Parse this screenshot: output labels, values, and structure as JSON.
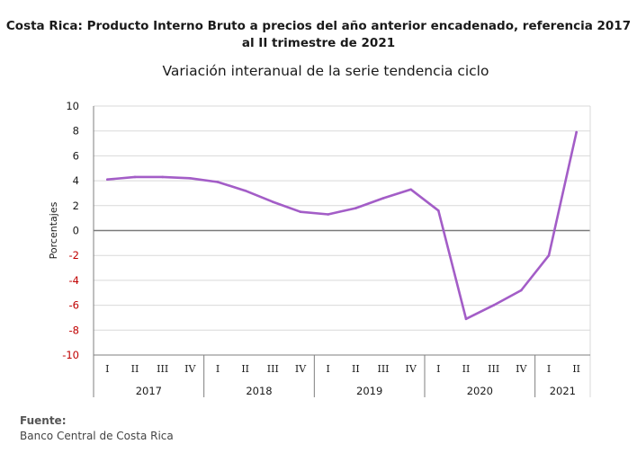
{
  "title_line1": "Costa Rica: Producto Interno Bruto a precios del año anterior encadenado, referencia 2017",
  "title_line2": "al II trimestre de 2021",
  "subtitle": "Variación interanual de la serie tendencia ciclo",
  "source_label": "Fuente:",
  "source_text": "Banco Central de Costa Rica",
  "colors": {
    "line": "#a35dc7",
    "negative_tick": "#c00000",
    "axis": "#7f7f7f",
    "grid": "#d9d9d9"
  },
  "chart_data": {
    "type": "line",
    "ylabel": "Porcentajes",
    "ylim": [
      -10,
      10
    ],
    "yticks": [
      10,
      8,
      6,
      4,
      2,
      0,
      -2,
      -4,
      -6,
      -8,
      -10
    ],
    "grid": true,
    "categories": [
      "I",
      "II",
      "III",
      "IV",
      "I",
      "II",
      "III",
      "IV",
      "I",
      "II",
      "III",
      "IV",
      "I",
      "II",
      "III",
      "IV",
      "I",
      "II"
    ],
    "years": [
      {
        "label": "2017",
        "quarters": 4
      },
      {
        "label": "2018",
        "quarters": 4
      },
      {
        "label": "2019",
        "quarters": 4
      },
      {
        "label": "2020",
        "quarters": 4
      },
      {
        "label": "2021",
        "quarters": 2
      }
    ],
    "series": [
      {
        "values": [
          4.1,
          4.3,
          4.3,
          4.2,
          3.9,
          3.2,
          2.3,
          1.5,
          1.3,
          1.8,
          2.6,
          3.3,
          1.6,
          -7.1,
          -6.0,
          -4.8,
          -2.0,
          7.9
        ]
      }
    ]
  }
}
